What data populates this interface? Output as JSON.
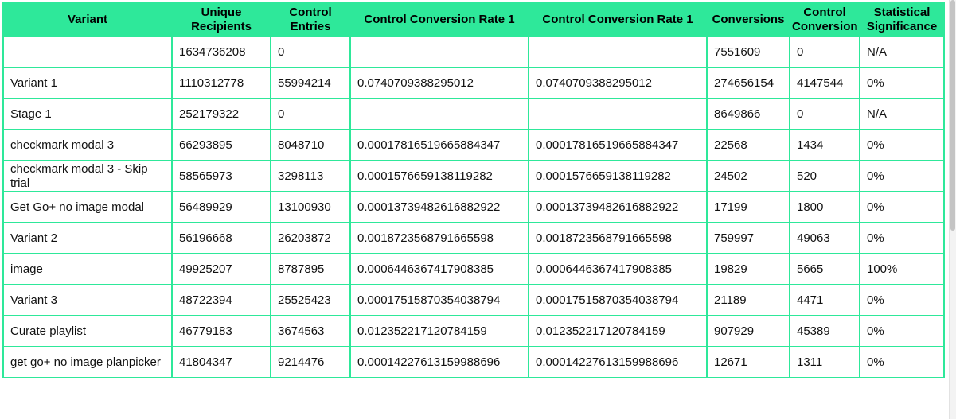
{
  "table": {
    "columns": [
      "Variant",
      "Unique Recipients",
      "Control Entries",
      "Control Conversion Rate 1",
      "Control Conversion Rate 1",
      "Conversions",
      "Control Conversion",
      "Statistical Significance"
    ],
    "rows": [
      [
        "",
        "1634736208",
        "0",
        "",
        "",
        "7551609",
        "0",
        "N/A"
      ],
      [
        "Variant 1",
        "1110312778",
        "55994214",
        "0.0740709388295012",
        "0.0740709388295012",
        "274656154",
        "4147544",
        "0%"
      ],
      [
        "Stage 1",
        "252179322",
        "0",
        "",
        "",
        "8649866",
        "0",
        "N/A"
      ],
      [
        "checkmark modal 3",
        "66293895",
        "8048710",
        "0.00017816519665884347",
        "0.00017816519665884347",
        "22568",
        "1434",
        "0%"
      ],
      [
        "checkmark modal 3 - Skip trial",
        "58565973",
        "3298113",
        "0.0001576659138119282",
        "0.0001576659138119282",
        "24502",
        "520",
        "0%"
      ],
      [
        "Get Go+ no image modal",
        "56489929",
        "13100930",
        "0.00013739482616882922",
        "0.00013739482616882922",
        "17199",
        "1800",
        "0%"
      ],
      [
        "Variant 2",
        "56196668",
        "26203872",
        "0.0018723568791665598",
        "0.0018723568791665598",
        "759997",
        "49063",
        "0%"
      ],
      [
        "image",
        "49925207",
        "8787895",
        "0.0006446367417908385",
        "0.0006446367417908385",
        "19829",
        "5665",
        "100%"
      ],
      [
        "Variant 3",
        "48722394",
        "25525423",
        "0.00017515870354038794",
        "0.00017515870354038794",
        "21189",
        "4471",
        "0%"
      ],
      [
        "Curate playlist",
        "46779183",
        "3674563",
        "0.012352217120784159",
        "0.012352217120784159",
        "907929",
        "45389",
        "0%"
      ],
      [
        "get go+ no image planpicker",
        "41804347",
        "9214476",
        "0.00014227613159988696",
        "0.00014227613159988696",
        "12671",
        "1311",
        "0%"
      ]
    ]
  },
  "scroll": {
    "position_fraction": 0.0,
    "visible_fraction": 0.55
  },
  "colors": {
    "accent": "#2ee89a",
    "header_text": "#000000",
    "cell_text": "#111111",
    "scrollbar_thumb": "#c4c4c4"
  }
}
